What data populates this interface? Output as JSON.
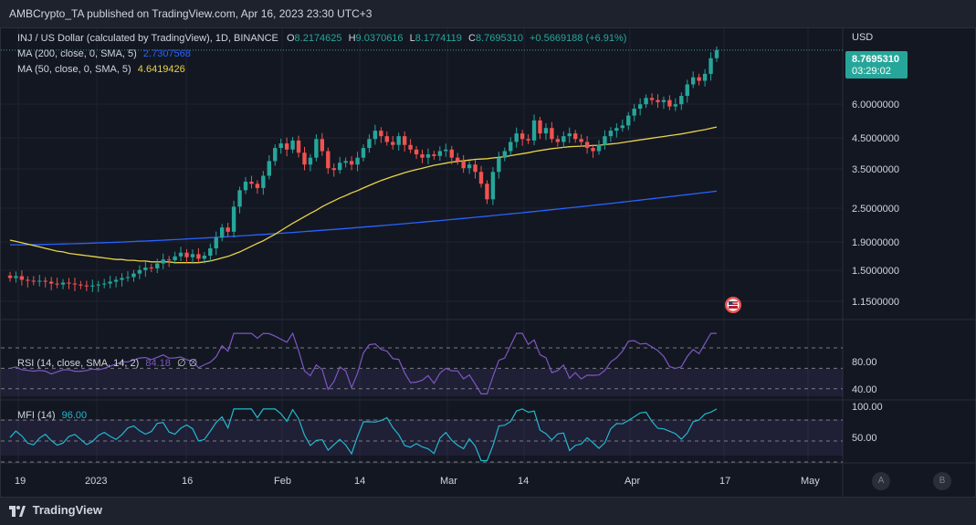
{
  "header": {
    "published": "AMBCrypto_TA published on TradingView.com, Apr 16, 2023 23:30 UTC+3"
  },
  "legend": {
    "symbol": "INJ / US Dollar (calculated by TradingView), 1D, BINANCE",
    "o_label": "O",
    "o_value": "8.2174625",
    "h_label": "H",
    "h_value": "9.0370616",
    "l_label": "L",
    "l_value": "8.1774119",
    "c_label": "C",
    "c_value": "8.7695310",
    "change": "+0.5669188 (+6.91%)",
    "ma200_label": "MA (200, close, 0, SMA, 5)",
    "ma200_value": "2.7307568",
    "ma50_label": "MA (50, close, 0, SMA, 5)",
    "ma50_value": "4.6419426",
    "rsi_label": "RSI (14, close, SMA, 14, 2)",
    "rsi_value": "84.18",
    "rsi_extra": "∅ ∅",
    "mfi_label": "MFI (14)",
    "mfi_value": "96.00"
  },
  "price_axis": {
    "currency": "USD",
    "last_price": "8.7695310",
    "countdown": "03:29:02",
    "ticks": [
      "6.0000000",
      "4.5000000",
      "3.5000000",
      "2.5000000",
      "1.9000000",
      "1.5000000",
      "1.1500000"
    ]
  },
  "rsi_axis": {
    "ticks": [
      "80.00",
      "40.00"
    ]
  },
  "mfi_axis": {
    "ticks": [
      "100.00",
      "50.00"
    ]
  },
  "time_axis": {
    "labels": [
      "19",
      "2023",
      "16",
      "Feb",
      "14",
      "Mar",
      "14",
      "Apr",
      "17",
      "May"
    ]
  },
  "footer": {
    "brand": "TradingView",
    "btn_a": "A",
    "btn_b": "B"
  },
  "colors": {
    "up": "#26a69a",
    "down": "#ef5350",
    "ma50": "#e9d34a",
    "ma200": "#2962ff",
    "rsi": "#7e57c2",
    "mfi": "#22b8cf",
    "price_label": "#26a69a"
  },
  "chart_data": [
    {
      "type": "candlestick",
      "title": "INJ / US Dollar (calculated by TradingView), 1D, BINANCE",
      "y_scale": "log",
      "ylim": [
        0.95,
        10.5
      ],
      "x_start": "2022-12-16",
      "x_end": "2023-04-16",
      "close": [
        1.33,
        1.35,
        1.31,
        1.3,
        1.29,
        1.3,
        1.29,
        1.27,
        1.26,
        1.28,
        1.27,
        1.26,
        1.25,
        1.24,
        1.25,
        1.26,
        1.27,
        1.29,
        1.31,
        1.33,
        1.34,
        1.38,
        1.42,
        1.45,
        1.44,
        1.5,
        1.55,
        1.54,
        1.59,
        1.64,
        1.58,
        1.62,
        1.56,
        1.6,
        1.7,
        1.86,
        2.02,
        1.95,
        2.4,
        2.75,
        2.95,
        2.9,
        2.8,
        3.1,
        3.5,
        3.9,
        4.05,
        3.85,
        4.15,
        3.75,
        3.4,
        3.6,
        4.2,
        3.8,
        3.3,
        3.25,
        3.45,
        3.5,
        3.4,
        3.6,
        3.9,
        4.2,
        4.5,
        4.3,
        4.1,
        4.0,
        4.3,
        4.0,
        3.85,
        3.7,
        3.6,
        3.7,
        3.65,
        3.8,
        3.85,
        3.6,
        3.5,
        3.3,
        3.4,
        3.2,
        2.9,
        2.55,
        3.2,
        3.6,
        3.8,
        4.1,
        4.4,
        4.2,
        4.15,
        4.9,
        4.4,
        4.6,
        4.2,
        4.1,
        4.3,
        4.4,
        4.2,
        4.1,
        3.9,
        3.8,
        4.0,
        4.3,
        4.5,
        4.6,
        4.7,
        5.1,
        5.4,
        5.6,
        5.9,
        5.8,
        5.7,
        5.8,
        5.5,
        5.6,
        6.0,
        6.6,
        7.0,
        6.8,
        7.2,
        8.2,
        8.77
      ],
      "ma50": [
        1.82,
        1.8,
        1.78,
        1.76,
        1.74,
        1.72,
        1.7,
        1.68,
        1.66,
        1.65,
        1.63,
        1.62,
        1.61,
        1.6,
        1.59,
        1.58,
        1.57,
        1.56,
        1.55,
        1.55,
        1.54,
        1.54,
        1.53,
        1.53,
        1.52,
        1.52,
        1.52,
        1.52,
        1.51,
        1.51,
        1.51,
        1.51,
        1.51,
        1.52,
        1.53,
        1.55,
        1.57,
        1.59,
        1.62,
        1.65,
        1.69,
        1.73,
        1.77,
        1.81,
        1.86,
        1.91,
        1.97,
        2.03,
        2.09,
        2.15,
        2.21,
        2.27,
        2.33,
        2.4,
        2.46,
        2.52,
        2.58,
        2.63,
        2.69,
        2.74,
        2.8,
        2.86,
        2.92,
        2.98,
        3.03,
        3.08,
        3.13,
        3.18,
        3.22,
        3.26,
        3.3,
        3.34,
        3.38,
        3.41,
        3.44,
        3.47,
        3.49,
        3.51,
        3.53,
        3.55,
        3.56,
        3.57,
        3.59,
        3.61,
        3.63,
        3.66,
        3.69,
        3.72,
        3.75,
        3.79,
        3.82,
        3.85,
        3.88,
        3.9,
        3.92,
        3.94,
        3.95,
        3.96,
        3.97,
        3.98,
        3.99,
        4.01,
        4.03,
        4.05,
        4.08,
        4.11,
        4.14,
        4.17,
        4.2,
        4.23,
        4.26,
        4.29,
        4.32,
        4.35,
        4.38,
        4.42,
        4.46,
        4.5,
        4.54,
        4.59,
        4.64
      ],
      "ma200_start": 1.75,
      "ma200_end": 2.73
    },
    {
      "type": "line",
      "title": "RSI (14, close, SMA, 14, 2)",
      "ylim": [
        20,
        95
      ],
      "bands": [
        70,
        50,
        30
      ],
      "last": 84.18
    },
    {
      "type": "line",
      "title": "MFI (14)",
      "ylim": [
        20,
        105
      ],
      "bands": [
        80,
        50,
        20
      ],
      "last": 96.0
    }
  ]
}
